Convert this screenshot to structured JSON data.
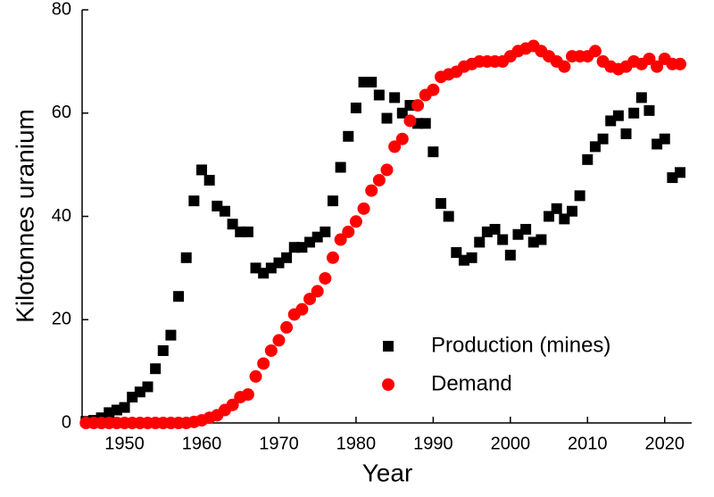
{
  "chart_data": {
    "type": "scatter",
    "xlabel": "Year",
    "ylabel": "Kilotonnes uranium",
    "x": [
      1945,
      1946,
      1947,
      1948,
      1949,
      1950,
      1951,
      1952,
      1953,
      1954,
      1955,
      1956,
      1957,
      1958,
      1959,
      1960,
      1961,
      1962,
      1963,
      1964,
      1965,
      1966,
      1967,
      1968,
      1969,
      1970,
      1971,
      1972,
      1973,
      1974,
      1975,
      1976,
      1977,
      1978,
      1979,
      1980,
      1981,
      1982,
      1983,
      1984,
      1985,
      1986,
      1987,
      1988,
      1989,
      1990,
      1991,
      1992,
      1993,
      1994,
      1995,
      1996,
      1997,
      1998,
      1999,
      2000,
      2001,
      2002,
      2003,
      2004,
      2005,
      2006,
      2007,
      2008,
      2009,
      2010,
      2011,
      2012,
      2013,
      2014,
      2015,
      2016,
      2017,
      2018,
      2019,
      2020,
      2021,
      2022
    ],
    "series": [
      {
        "name": "Production (mines)",
        "color": "#000000",
        "marker": "square",
        "values": [
          0.3,
          0.5,
          1,
          2,
          2.5,
          3,
          5,
          6,
          7,
          10.5,
          14,
          17,
          24.5,
          32,
          43,
          49,
          47,
          42,
          41,
          38.5,
          37,
          37,
          30,
          29,
          30,
          31,
          32,
          34,
          34,
          35,
          36,
          37,
          43,
          49.5,
          55.5,
          61,
          66,
          66,
          63.5,
          59,
          63,
          60,
          61.5,
          58,
          58,
          52.5,
          42.5,
          40,
          33,
          31.5,
          32,
          35,
          37,
          37.5,
          35.5,
          32.5,
          36.5,
          37.5,
          35,
          35.5,
          40,
          41.5,
          39.5,
          41,
          44,
          51,
          53.5,
          55,
          58.5,
          59.5,
          56,
          60,
          63,
          60.5,
          54,
          55,
          47.5,
          48.5
        ]
      },
      {
        "name": "Demand",
        "color": "#ff0000",
        "marker": "circle",
        "values": [
          0,
          0,
          0,
          0,
          0,
          0,
          0,
          0,
          0,
          0,
          0,
          0,
          0,
          0,
          0.2,
          0.5,
          1,
          1.5,
          2.5,
          3.5,
          5,
          5.5,
          9,
          11.5,
          14,
          16,
          18.5,
          21,
          22,
          24,
          25.5,
          28,
          32,
          35.5,
          37,
          39,
          41.5,
          45,
          47,
          49,
          53.5,
          55,
          58.5,
          61.5,
          63.5,
          64.5,
          67,
          67.5,
          68,
          69,
          69.5,
          70,
          70,
          70,
          70,
          71,
          72,
          72.5,
          73,
          72,
          71,
          70,
          69,
          71,
          71,
          71,
          72,
          70,
          69,
          68.5,
          69,
          70,
          69.5,
          70.5,
          69,
          70.5,
          69.5,
          69.5
        ]
      }
    ],
    "xlim": [
      1944.5,
      2023.5
    ],
    "xticks": [
      1950,
      1960,
      1970,
      1980,
      1990,
      2000,
      2010,
      2020
    ],
    "ylim": [
      0,
      80
    ],
    "yticks": [
      0,
      20,
      40,
      60,
      80
    ],
    "legend": "lower right"
  }
}
